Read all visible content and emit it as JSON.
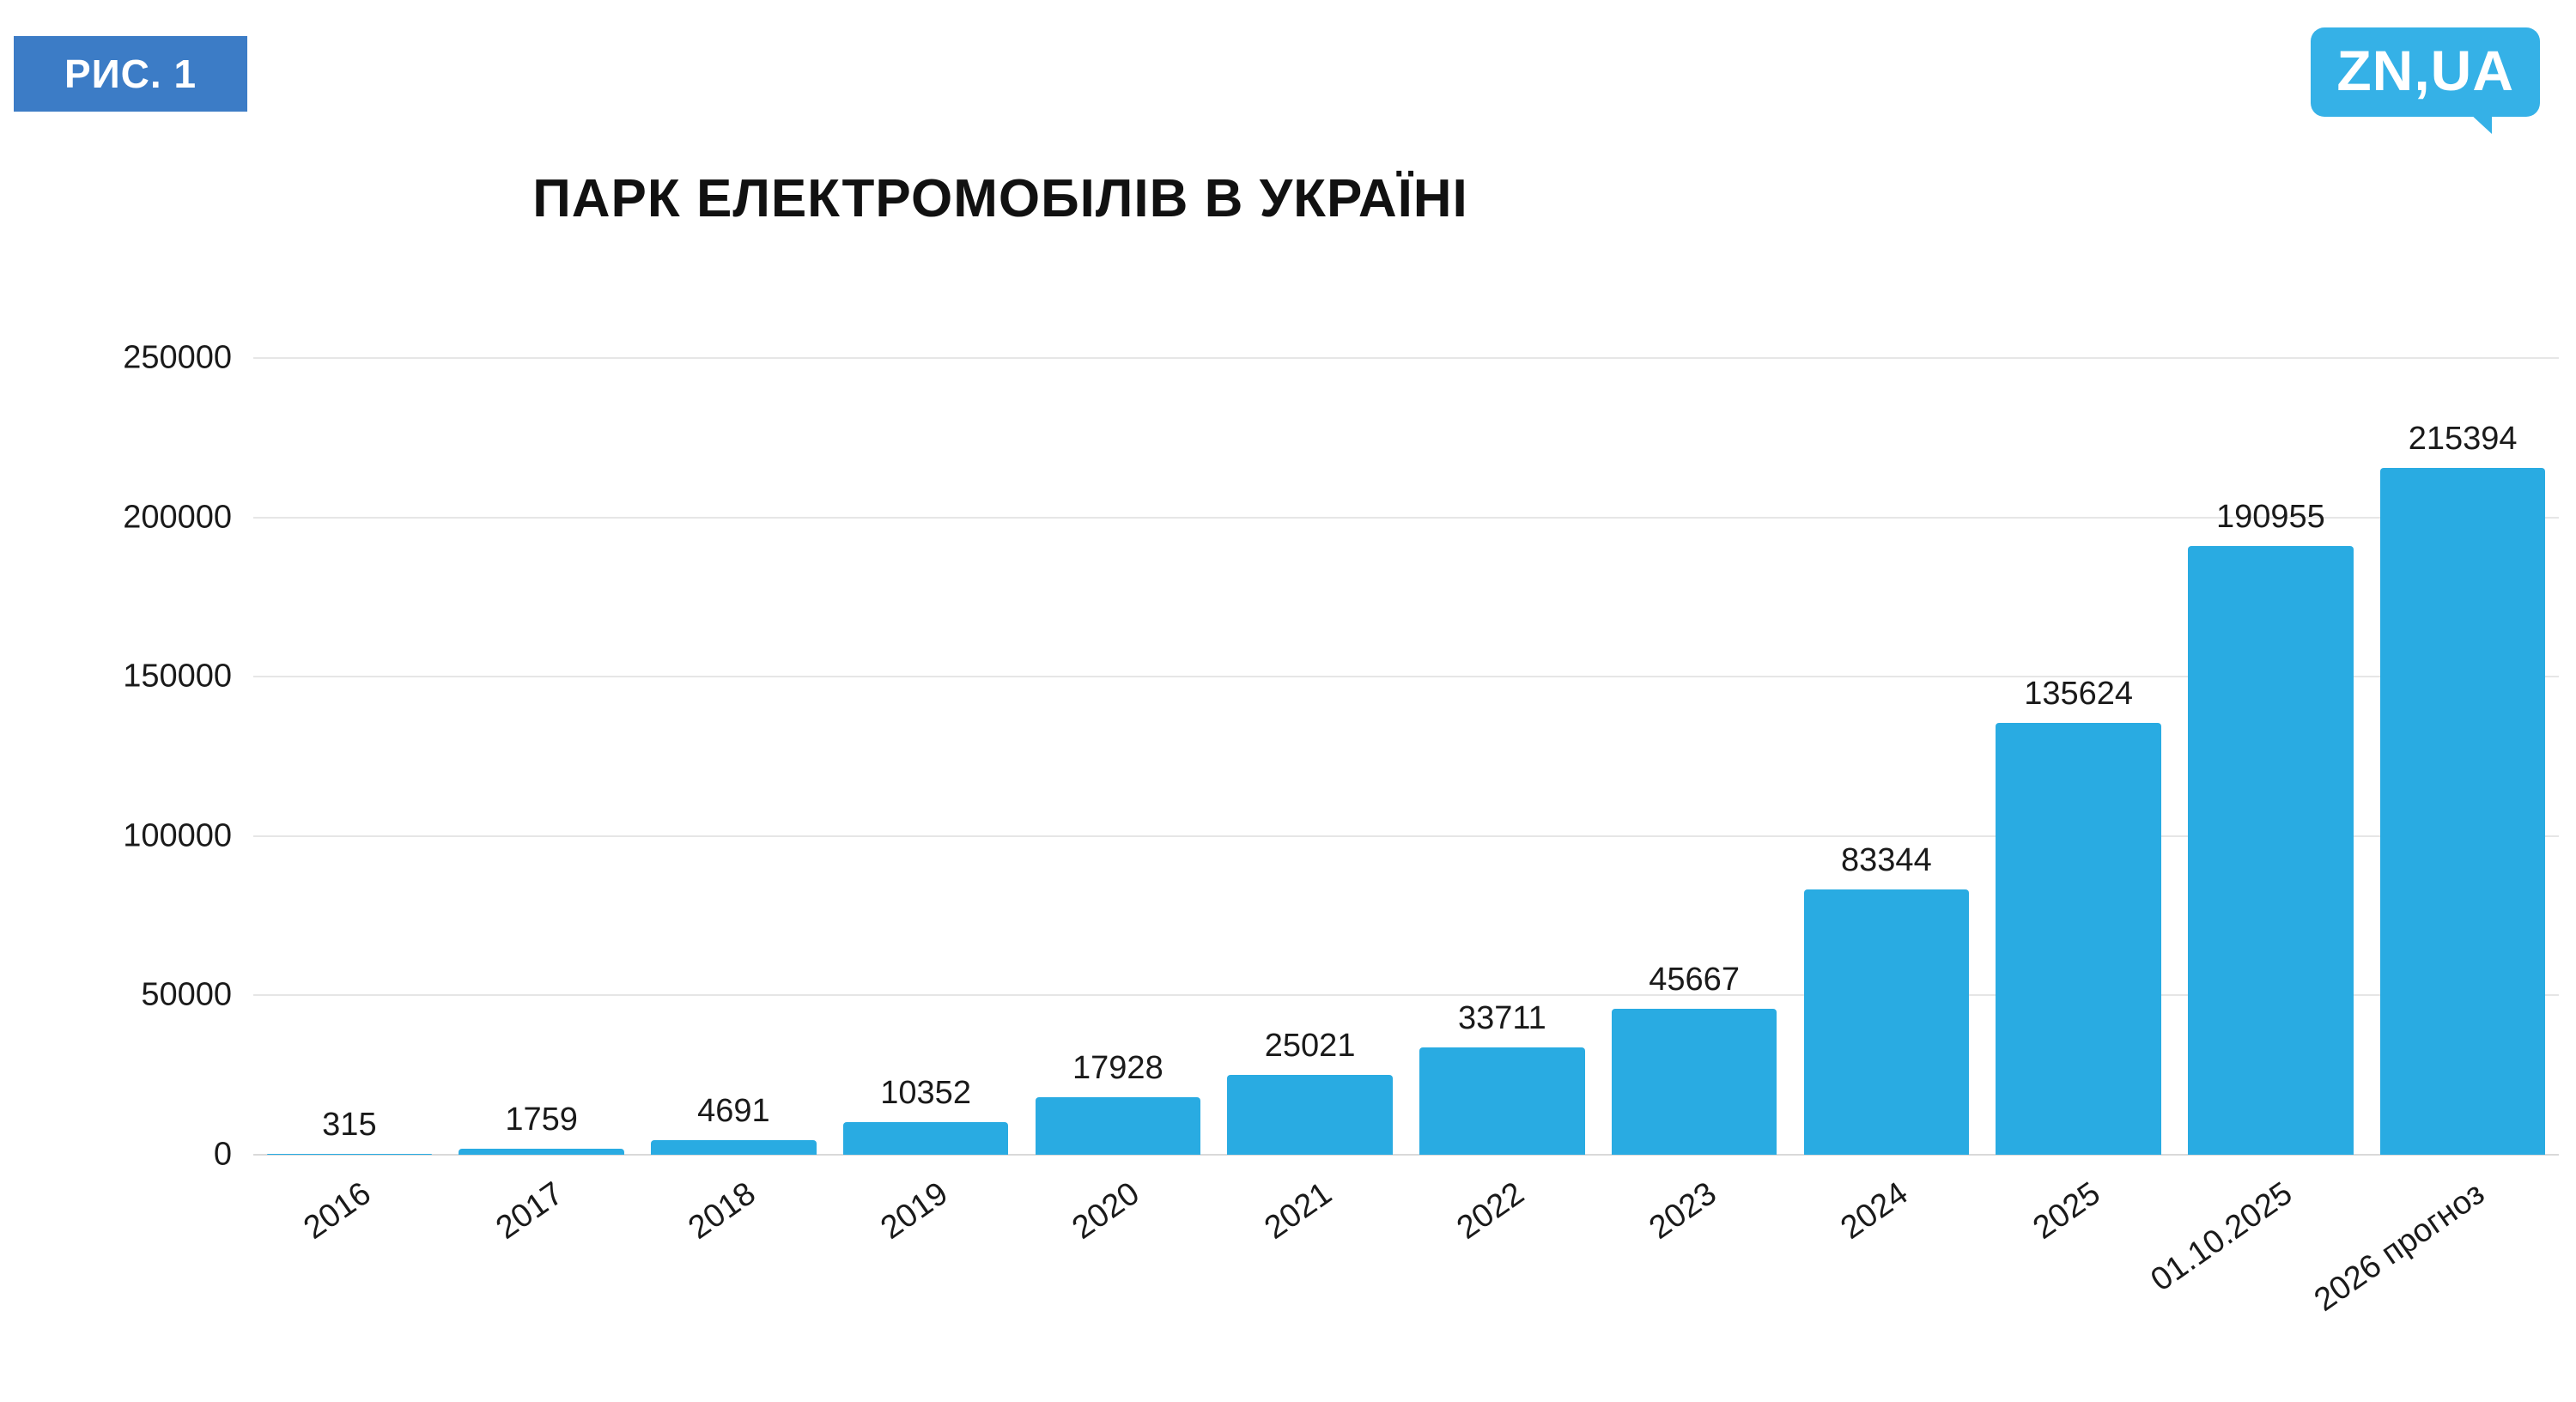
{
  "figure_label": "РИС. 1",
  "logo_text": "ZN,UA",
  "colors": {
    "badge_blue": "#3c7cc6",
    "logo_blue": "#35b1e7",
    "bar_blue": "#29abe2",
    "grid_gray": "#e6e6e6",
    "text_dark": "#1a1a1a"
  },
  "chart_data": {
    "type": "bar",
    "title": "ПАРК ЕЛЕКТРОМОБІЛІВ В УКРАЇНІ",
    "categories": [
      "2016",
      "2017",
      "2018",
      "2019",
      "2020",
      "2021",
      "2022",
      "2023",
      "2024",
      "2025",
      "01.10.2025",
      "2026 прогноз"
    ],
    "values": [
      315,
      1759,
      4691,
      10352,
      17928,
      25021,
      33711,
      45667,
      83344,
      135624,
      190955,
      215394
    ],
    "xlabel": "",
    "ylabel": "",
    "ylim": [
      0,
      250000
    ],
    "yticks": [
      0,
      50000,
      100000,
      150000,
      200000,
      250000
    ],
    "grid": true,
    "legend": false,
    "bar_color": "#29abe2"
  }
}
